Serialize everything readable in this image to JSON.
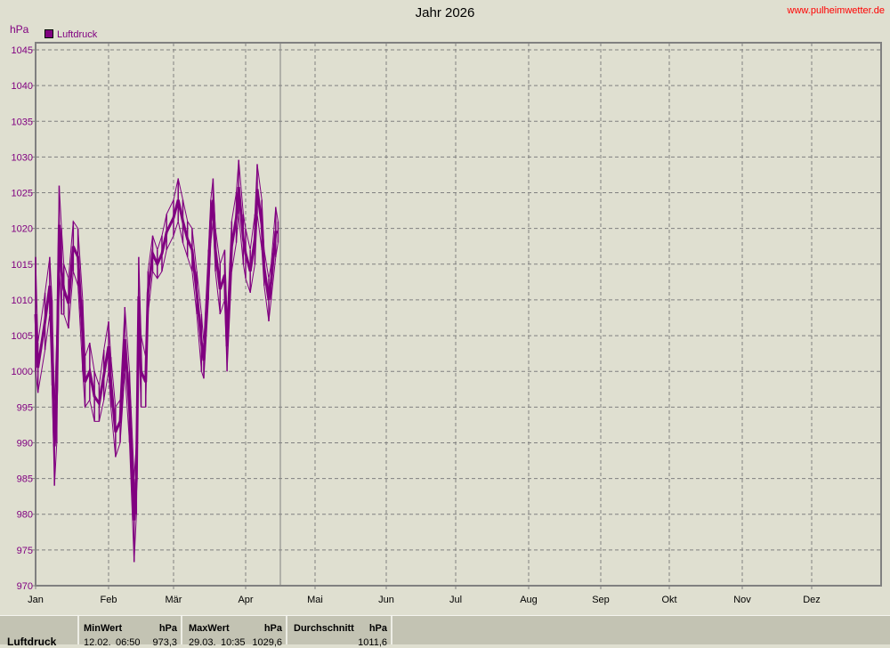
{
  "chart_data": {
    "type": "line",
    "title": "Jahr 2026",
    "watermark": "www.pulheimwetter.de",
    "ylabel": "hPa",
    "ylim": [
      970,
      1045
    ],
    "yticks": [
      970,
      975,
      980,
      985,
      990,
      995,
      1000,
      1005,
      1010,
      1015,
      1020,
      1025,
      1030,
      1035,
      1040,
      1045
    ],
    "xticks": [
      "Jan",
      "Feb",
      "Mär",
      "Apr",
      "Mai",
      "Jun",
      "Jul",
      "Aug",
      "Sep",
      "Okt",
      "Nov",
      "Dez"
    ],
    "grid": true,
    "legend_position": "top-left",
    "current_date_marker": "16.04",
    "series": [
      {
        "name": "Luftdruck",
        "color": "#800080",
        "points": [
          [
            "01.01",
            1000,
            1016
          ],
          [
            "02.01",
            997,
            1004
          ],
          [
            "05.01",
            1003,
            1011
          ],
          [
            "07.01",
            1008,
            1016
          ],
          [
            "08.01",
            998,
            1010
          ],
          [
            "09.01",
            984,
            995
          ],
          [
            "10.01",
            990,
            1005
          ],
          [
            "11.01",
            1015,
            1026
          ],
          [
            "12.01",
            1008,
            1020
          ],
          [
            "13.01",
            1008,
            1015
          ],
          [
            "15.01",
            1006,
            1013
          ],
          [
            "17.01",
            1014,
            1021
          ],
          [
            "19.01",
            1012,
            1020
          ],
          [
            "21.01",
            1000,
            1010
          ],
          [
            "22.01",
            995,
            1002
          ],
          [
            "24.01",
            996,
            1004
          ],
          [
            "26.01",
            993,
            1000
          ],
          [
            "28.01",
            993,
            998
          ],
          [
            "30.01",
            996,
            1003
          ],
          [
            "01.02",
            1000,
            1007
          ],
          [
            "02.02",
            995,
            1002
          ],
          [
            "04.02",
            988,
            995
          ],
          [
            "06.02",
            990,
            996
          ],
          [
            "08.02",
            1000,
            1009
          ],
          [
            "10.02",
            990,
            1000
          ],
          [
            "12.02",
            973.3,
            985
          ],
          [
            "13.02",
            980,
            990
          ],
          [
            "14.02",
            1005,
            1016
          ],
          [
            "15.02",
            995,
            1005
          ],
          [
            "17.02",
            995,
            1002
          ],
          [
            "18.02",
            1008,
            1014
          ],
          [
            "20.02",
            1014,
            1019
          ],
          [
            "22.02",
            1013,
            1017
          ],
          [
            "24.02",
            1014,
            1019
          ],
          [
            "26.02",
            1017,
            1022
          ],
          [
            "01.03",
            1019,
            1024
          ],
          [
            "03.03",
            1021,
            1027
          ],
          [
            "05.03",
            1018,
            1024
          ],
          [
            "07.03",
            1016,
            1021
          ],
          [
            "09.03",
            1014,
            1020
          ],
          [
            "11.03",
            1008,
            1014
          ],
          [
            "13.03",
            1000,
            1008
          ],
          [
            "14.03",
            999,
            1004
          ],
          [
            "16.03",
            1010,
            1017
          ],
          [
            "17.03",
            1018,
            1024
          ],
          [
            "18.03",
            1021,
            1027
          ],
          [
            "19.03",
            1014,
            1020
          ],
          [
            "21.03",
            1008,
            1015
          ],
          [
            "23.03",
            1010,
            1017
          ],
          [
            "24.03",
            1000,
            1007
          ],
          [
            "26.03",
            1014,
            1021
          ],
          [
            "28.03",
            1018,
            1025
          ],
          [
            "29.03",
            1022,
            1029.6
          ],
          [
            "31.03",
            1015,
            1022
          ],
          [
            "01.04",
            1013,
            1020
          ],
          [
            "03.04",
            1011,
            1017
          ],
          [
            "05.04",
            1015,
            1022
          ],
          [
            "06.04",
            1022,
            1029
          ],
          [
            "08.04",
            1017,
            1024
          ],
          [
            "09.04",
            1012,
            1017
          ],
          [
            "11.04",
            1007,
            1013
          ],
          [
            "12.04",
            1010,
            1015
          ],
          [
            "14.04",
            1016,
            1023
          ],
          [
            "15.04",
            1018,
            1021
          ]
        ]
      }
    ]
  },
  "stats": {
    "label": "Luftdruck",
    "min": {
      "header": "MinWert",
      "unit": "hPa",
      "date": "12.02.",
      "time": "06:50",
      "value": "973,3"
    },
    "max": {
      "header": "MaxWert",
      "unit": "hPa",
      "date": "29.03.",
      "time": "10:35",
      "value": "1029,6"
    },
    "avg": {
      "header": "Durchschnitt",
      "unit": "hPa",
      "value": "1011,6"
    }
  }
}
